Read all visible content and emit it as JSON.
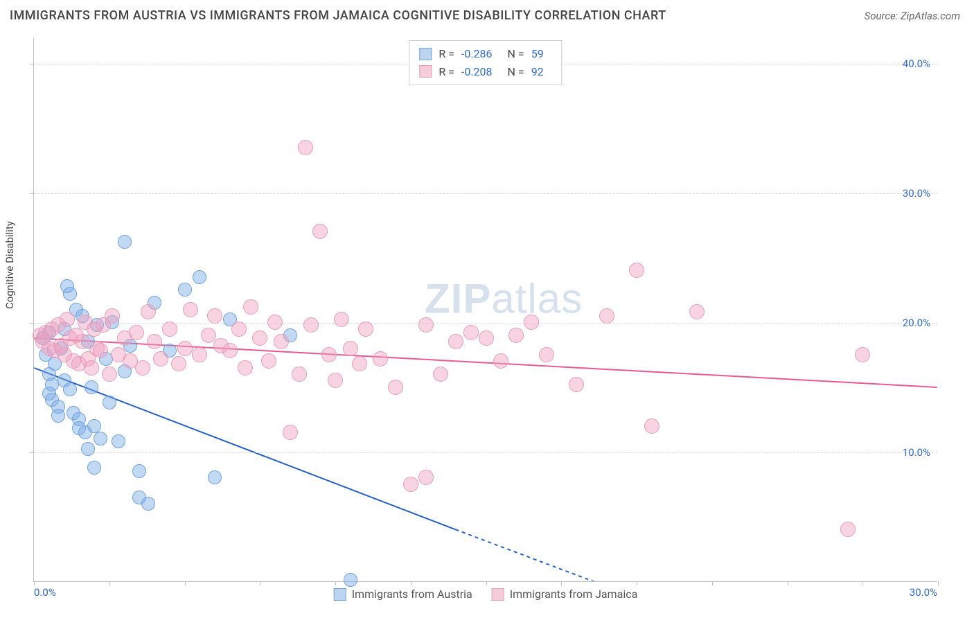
{
  "title": "IMMIGRANTS FROM AUSTRIA VS IMMIGRANTS FROM JAMAICA COGNITIVE DISABILITY CORRELATION CHART",
  "source": "Source: ZipAtlas.com",
  "ylabel": "Cognitive Disability",
  "watermark": "ZIPatlas",
  "chart": {
    "type": "scatter",
    "xlim": [
      0,
      30
    ],
    "ylim": [
      0,
      42
    ],
    "xtick_labels": [
      "0.0%",
      "30.0%"
    ],
    "xtick_marks": [
      0,
      2.5,
      5,
      7.5,
      10,
      12.5,
      15,
      17.5,
      20,
      22.5,
      25,
      27.5,
      30
    ],
    "ytick_labels": [
      "10.0%",
      "20.0%",
      "30.0%",
      "40.0%"
    ],
    "ytick_positions": [
      10,
      20,
      30,
      40
    ],
    "grid_color": "#d9d9d9",
    "background_color": "#ffffff",
    "axis_color": "#bfbfbf",
    "tick_color": "#2e6bd6"
  },
  "series": [
    {
      "name": "Immigrants from Austria",
      "color_fill": "rgba(120,170,230,0.45)",
      "color_stroke": "#6fa3e0",
      "swatch_fill": "#bcd4f0",
      "swatch_border": "#6fa3e0",
      "marker_radius": 10,
      "stats": {
        "R": "-0.286",
        "N": "59"
      },
      "trend": {
        "x1": 0,
        "y1": 16.5,
        "x2": 14,
        "y2": 4.0,
        "x2_dash": 22,
        "y2_dash": -3,
        "color": "#2260c9",
        "width": 2
      },
      "points": [
        [
          0.3,
          18.8
        ],
        [
          0.4,
          17.5
        ],
        [
          0.5,
          19.2
        ],
        [
          0.5,
          16.0
        ],
        [
          0.5,
          14.5
        ],
        [
          0.6,
          14.0
        ],
        [
          0.6,
          15.2
        ],
        [
          0.7,
          16.8
        ],
        [
          0.8,
          13.5
        ],
        [
          0.8,
          12.8
        ],
        [
          0.9,
          18.0
        ],
        [
          1.0,
          15.5
        ],
        [
          1.0,
          19.5
        ],
        [
          1.1,
          22.8
        ],
        [
          1.2,
          22.2
        ],
        [
          1.2,
          14.8
        ],
        [
          1.3,
          13.0
        ],
        [
          1.4,
          21.0
        ],
        [
          1.5,
          12.5
        ],
        [
          1.5,
          11.8
        ],
        [
          1.6,
          20.5
        ],
        [
          1.7,
          11.5
        ],
        [
          1.8,
          10.2
        ],
        [
          1.8,
          18.5
        ],
        [
          1.9,
          15.0
        ],
        [
          2.0,
          8.8
        ],
        [
          2.0,
          12.0
        ],
        [
          2.1,
          19.8
        ],
        [
          2.2,
          11.0
        ],
        [
          2.4,
          17.2
        ],
        [
          2.5,
          13.8
        ],
        [
          2.6,
          20.0
        ],
        [
          2.8,
          10.8
        ],
        [
          3.0,
          26.2
        ],
        [
          3.0,
          16.2
        ],
        [
          3.2,
          18.2
        ],
        [
          3.5,
          8.5
        ],
        [
          3.5,
          6.5
        ],
        [
          3.8,
          6.0
        ],
        [
          4.0,
          21.5
        ],
        [
          4.5,
          17.8
        ],
        [
          5.0,
          22.5
        ],
        [
          5.5,
          23.5
        ],
        [
          6.0,
          8.0
        ],
        [
          6.5,
          20.2
        ],
        [
          8.5,
          19.0
        ],
        [
          10.5,
          0.1
        ]
      ]
    },
    {
      "name": "Immigrants from Jamaica",
      "color_fill": "rgba(240,160,190,0.45)",
      "color_stroke": "#e89bb8",
      "swatch_fill": "#f5cdda",
      "swatch_border": "#e89bb8",
      "marker_radius": 11,
      "stats": {
        "R": "-0.208",
        "N": "92"
      },
      "trend": {
        "x1": 0,
        "y1": 18.8,
        "x2": 30,
        "y2": 15.0,
        "color": "#e85a8f",
        "width": 2
      },
      "points": [
        [
          0.2,
          19.0
        ],
        [
          0.3,
          18.5
        ],
        [
          0.4,
          19.2
        ],
        [
          0.5,
          18.0
        ],
        [
          0.6,
          19.5
        ],
        [
          0.7,
          17.8
        ],
        [
          0.8,
          19.8
        ],
        [
          0.9,
          18.2
        ],
        [
          1.0,
          17.5
        ],
        [
          1.1,
          20.2
        ],
        [
          1.2,
          18.8
        ],
        [
          1.3,
          17.0
        ],
        [
          1.4,
          19.0
        ],
        [
          1.5,
          16.8
        ],
        [
          1.6,
          18.5
        ],
        [
          1.7,
          20.0
        ],
        [
          1.8,
          17.2
        ],
        [
          1.9,
          16.5
        ],
        [
          2.0,
          19.5
        ],
        [
          2.1,
          18.0
        ],
        [
          2.2,
          17.8
        ],
        [
          2.3,
          19.8
        ],
        [
          2.5,
          16.0
        ],
        [
          2.6,
          20.5
        ],
        [
          2.8,
          17.5
        ],
        [
          3.0,
          18.8
        ],
        [
          3.2,
          17.0
        ],
        [
          3.4,
          19.2
        ],
        [
          3.6,
          16.5
        ],
        [
          3.8,
          20.8
        ],
        [
          4.0,
          18.5
        ],
        [
          4.2,
          17.2
        ],
        [
          4.5,
          19.5
        ],
        [
          4.8,
          16.8
        ],
        [
          5.0,
          18.0
        ],
        [
          5.2,
          21.0
        ],
        [
          5.5,
          17.5
        ],
        [
          5.8,
          19.0
        ],
        [
          6.0,
          20.5
        ],
        [
          6.2,
          18.2
        ],
        [
          6.5,
          17.8
        ],
        [
          6.8,
          19.5
        ],
        [
          7.0,
          16.5
        ],
        [
          7.2,
          21.2
        ],
        [
          7.5,
          18.8
        ],
        [
          7.8,
          17.0
        ],
        [
          8.0,
          20.0
        ],
        [
          8.2,
          18.5
        ],
        [
          8.5,
          11.5
        ],
        [
          8.8,
          16.0
        ],
        [
          9.0,
          33.5
        ],
        [
          9.2,
          19.8
        ],
        [
          9.5,
          27.0
        ],
        [
          9.8,
          17.5
        ],
        [
          10.0,
          15.5
        ],
        [
          10.2,
          20.2
        ],
        [
          10.5,
          18.0
        ],
        [
          10.8,
          16.8
        ],
        [
          11.0,
          19.5
        ],
        [
          11.5,
          17.2
        ],
        [
          12.0,
          15.0
        ],
        [
          12.5,
          7.5
        ],
        [
          13.0,
          19.8
        ],
        [
          13.0,
          8.0
        ],
        [
          13.5,
          16.0
        ],
        [
          14.0,
          18.5
        ],
        [
          14.5,
          19.2
        ],
        [
          15.0,
          18.8
        ],
        [
          15.5,
          17.0
        ],
        [
          16.0,
          19.0
        ],
        [
          16.5,
          20.0
        ],
        [
          17.0,
          17.5
        ],
        [
          18.0,
          15.2
        ],
        [
          19.0,
          20.5
        ],
        [
          20.0,
          24.0
        ],
        [
          20.5,
          12.0
        ],
        [
          22.0,
          20.8
        ],
        [
          27.5,
          17.5
        ],
        [
          27.0,
          4.0
        ]
      ]
    }
  ],
  "legend_bottom": [
    {
      "label": "Immigrants from Austria",
      "swatch_fill": "#bcd4f0",
      "swatch_border": "#6fa3e0"
    },
    {
      "label": "Immigrants from Jamaica",
      "swatch_fill": "#f5cdda",
      "swatch_border": "#e89bb8"
    }
  ]
}
